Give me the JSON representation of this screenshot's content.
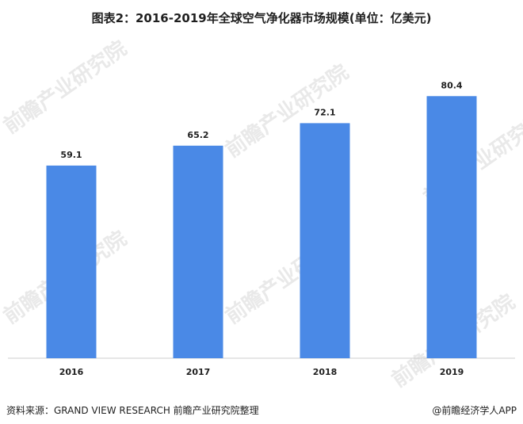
{
  "title": "图表2：2016-2019年全球空气净化器市场规模(单位：亿美元)",
  "chart_data": {
    "type": "bar",
    "title": "图表2：2016-2019年全球空气净化器市场规模(单位：亿美元)",
    "categories": [
      "2016",
      "2017",
      "2018",
      "2019"
    ],
    "values": [
      59.1,
      65.2,
      72.1,
      80.4
    ],
    "value_labels": [
      "59.1",
      "65.2",
      "72.1",
      "80.4"
    ],
    "xlabel": "",
    "ylabel": "",
    "ylim": [
      0,
      88
    ],
    "bar_color": "#4a89e6",
    "axis_color": "#cccccc",
    "grid": false
  },
  "footer": {
    "source": "资料来源：GRAND VIEW RESEARCH 前瞻产业研究院整理",
    "credit": "@前瞻经济学人APP"
  },
  "watermark_text": "前瞻产业研究院"
}
